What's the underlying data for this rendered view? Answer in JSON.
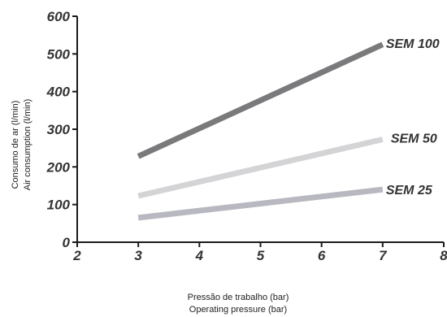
{
  "chart_data": {
    "type": "line",
    "title": "",
    "xlabel": [
      "Pressão de trabalho (bar)",
      "Operating pressure (bar)"
    ],
    "ylabel": [
      "Consumo de ar (l/min)",
      "Air consumption (l/min)"
    ],
    "xlim": [
      2,
      8
    ],
    "ylim": [
      0,
      600
    ],
    "xticks": [
      "2",
      "3",
      "4",
      "5",
      "6",
      "7",
      "8"
    ],
    "yticks": [
      "0",
      "100",
      "200",
      "300",
      "400",
      "500",
      "600"
    ],
    "grid": false,
    "series": [
      {
        "name": "SEM 100",
        "x": [
          3,
          7
        ],
        "y": [
          228,
          525
        ],
        "color": "#7a7a7c"
      },
      {
        "name": "SEM 50",
        "x": [
          3,
          7
        ],
        "y": [
          123,
          273
        ],
        "color": "#d4d4d6"
      },
      {
        "name": "SEM 25",
        "x": [
          3,
          7
        ],
        "y": [
          65,
          140
        ],
        "color": "#b8b8c0"
      }
    ]
  }
}
